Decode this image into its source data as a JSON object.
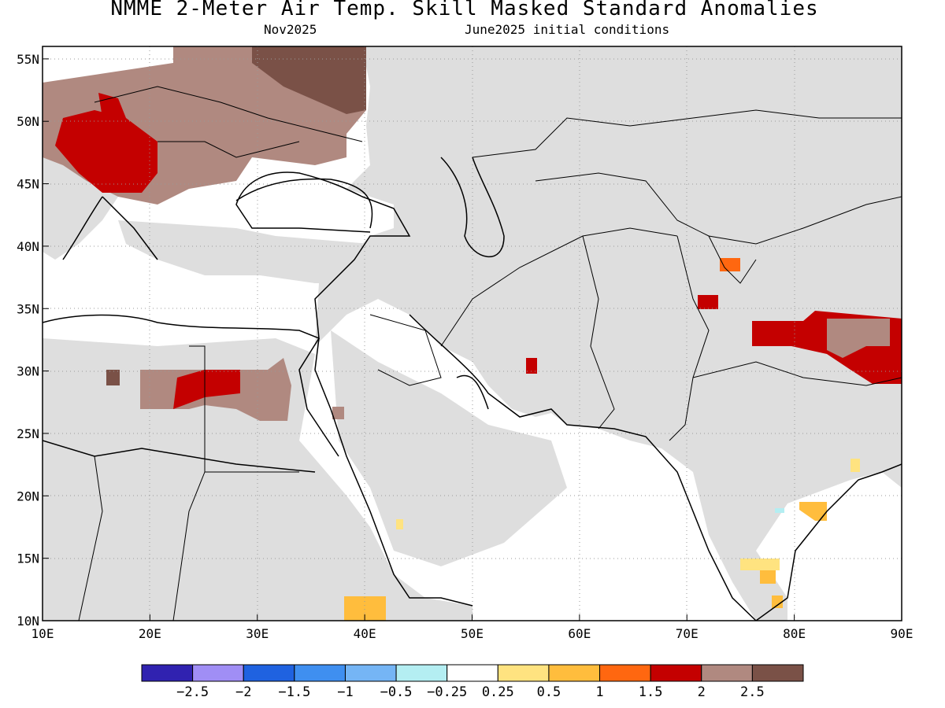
{
  "title": "NMME 2-Meter Air Temp. Skill Masked Standard Anomalies",
  "subtitle_left": "Nov2025",
  "subtitle_right": "June2025 initial conditions",
  "x_ticks": [
    "10E",
    "20E",
    "30E",
    "40E",
    "50E",
    "60E",
    "70E",
    "80E",
    "90E"
  ],
  "y_ticks": [
    "55N",
    "50N",
    "45N",
    "40N",
    "35N",
    "30N",
    "25N",
    "20N",
    "15N",
    "10N"
  ],
  "colorbar": {
    "colors": [
      "#3022b0",
      "#a08ef5",
      "#1f62e0",
      "#3f8ff0",
      "#75b5f5",
      "#b4eef2",
      "#ffffff",
      "#ffe380",
      "#ffbd3d",
      "#ff6710",
      "#c40000",
      "#b08980",
      "#7a5147"
    ],
    "labels": [
      "-2.5",
      "-2",
      "-1.5",
      "-1",
      "-0.5",
      "-0.25",
      "0.25",
      "0.5",
      "1",
      "1.5",
      "2",
      "2.5"
    ]
  },
  "map": {
    "lon_range": [
      10,
      90
    ],
    "lat_range": [
      10,
      56
    ],
    "masked_color": "#dedede",
    "anomaly_regions": [
      {
        "name": "central-europe",
        "level": "2"
      },
      {
        "name": "eastern-europe-russia",
        "level": "2.5"
      },
      {
        "name": "western-russia",
        "level": ">2.5"
      },
      {
        "name": "libya-egypt",
        "level": "2"
      },
      {
        "name": "northern-india-nepal",
        "level": "2"
      },
      {
        "name": "southern-india",
        "level": "0.5"
      },
      {
        "name": "ethiopia",
        "level": "0.5"
      }
    ]
  }
}
